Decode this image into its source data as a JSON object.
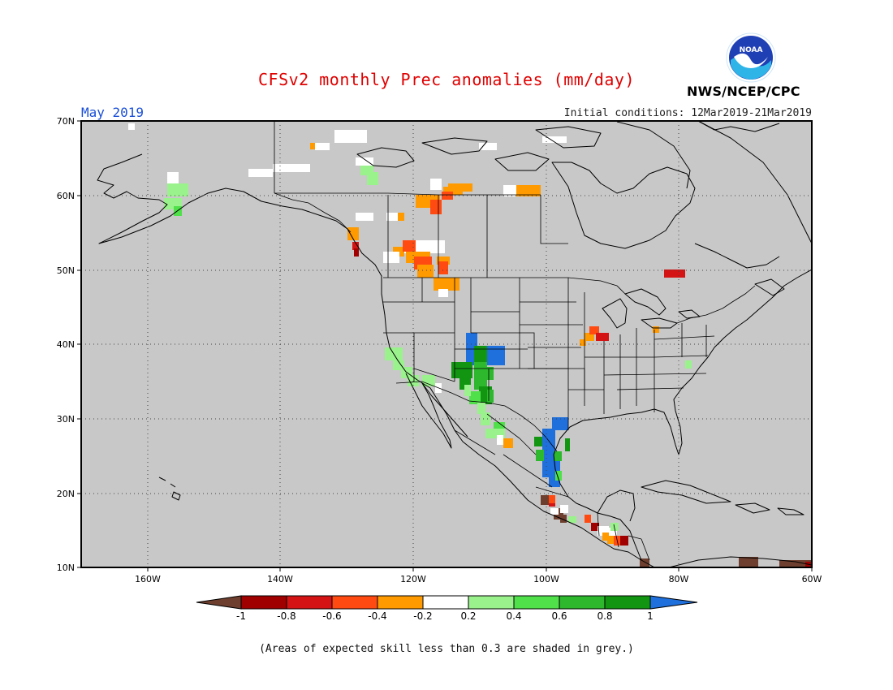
{
  "title": "CFSv2 monthly Prec anomalies (mm/day)",
  "month": "May 2019",
  "initial_conditions": "Initial conditions: 12Mar2019-21Mar2019",
  "agency": "NWS/NCEP/CPC",
  "logo_text": "NOAA",
  "footnote": "(Areas of expected skill less than 0.3 are shaded in grey.)",
  "map": {
    "lon_range": [
      -170,
      -60
    ],
    "lat_range": [
      10,
      70
    ],
    "lat_ticks": [
      "70N",
      "60N",
      "50N",
      "40N",
      "30N",
      "20N",
      "10N"
    ],
    "lon_ticks": [
      "160W",
      "140W",
      "120W",
      "100W",
      "80W",
      "60W"
    ],
    "background_color": "#c8c8c8"
  },
  "colorbar": {
    "labels": [
      "-1",
      "-0.8",
      "-0.6",
      "-0.4",
      "-0.2",
      "0.2",
      "0.4",
      "0.6",
      "0.8",
      "1"
    ],
    "colors": [
      "#6e3f2e",
      "#a00000",
      "#d41414",
      "#ff4a12",
      "#ff9a00",
      "#ffffff",
      "#9af28c",
      "#4fe04a",
      "#2db82d",
      "#129612",
      "#1f6fdc"
    ]
  }
}
